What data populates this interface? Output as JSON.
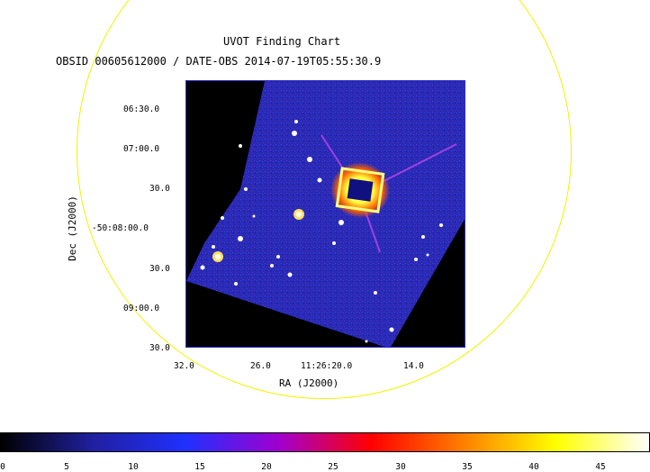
{
  "header": {
    "title": "UVOT Finding Chart",
    "subtitle": "OBSID 00605612000 / DATE-OBS 2014-07-19T05:55:30.9"
  },
  "axes": {
    "xlabel": "RA (J2000)",
    "ylabel": "Dec (J2000)",
    "ra_ticks": [
      "32.0",
      "26.0",
      "11:26:20.0",
      "14.0"
    ],
    "dec_ticks": [
      "06:30.0",
      "07:00.0",
      "30.0",
      "-50:08:00.0",
      "30.0",
      "09:00.0",
      "30.0"
    ]
  },
  "colorbar": {
    "ticks": [
      "0",
      "5",
      "10",
      "15",
      "20",
      "25",
      "30",
      "35",
      "40",
      "45"
    ],
    "colors": [
      "#000000",
      "#2020a0",
      "#2030ff",
      "#a000d0",
      "#ff0000",
      "#ff8000",
      "#ffff00",
      "#ffffff"
    ]
  },
  "colors": {
    "field_circle": "#f2f200",
    "image_background": "#2a2ab4"
  }
}
